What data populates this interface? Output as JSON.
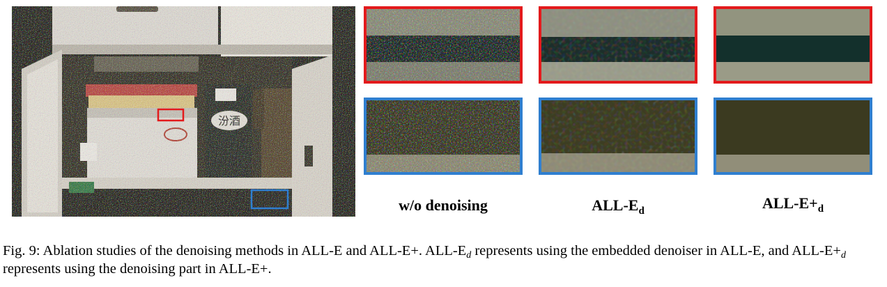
{
  "figure": {
    "photo_sign_text": "汾酒",
    "columns": [
      {
        "label": "w/o denoising",
        "sub": ""
      },
      {
        "label": "ALL-E",
        "sub": "d"
      },
      {
        "label": "ALL-E+",
        "sub": "d"
      }
    ],
    "colors": {
      "red_box": "#e31a1c",
      "blue_box": "#2f7fd0"
    }
  },
  "caption": {
    "part1": "Fig. 9: Ablation studies of the denoising methods in ALL-E and ALL-E+. ALL-E",
    "sub1": "d",
    "part2": " represents using the embedded denoiser in ALL-E, and ALL-E+",
    "sub2": "d",
    "part3": " represents using the denoising part in ALL-E+."
  }
}
